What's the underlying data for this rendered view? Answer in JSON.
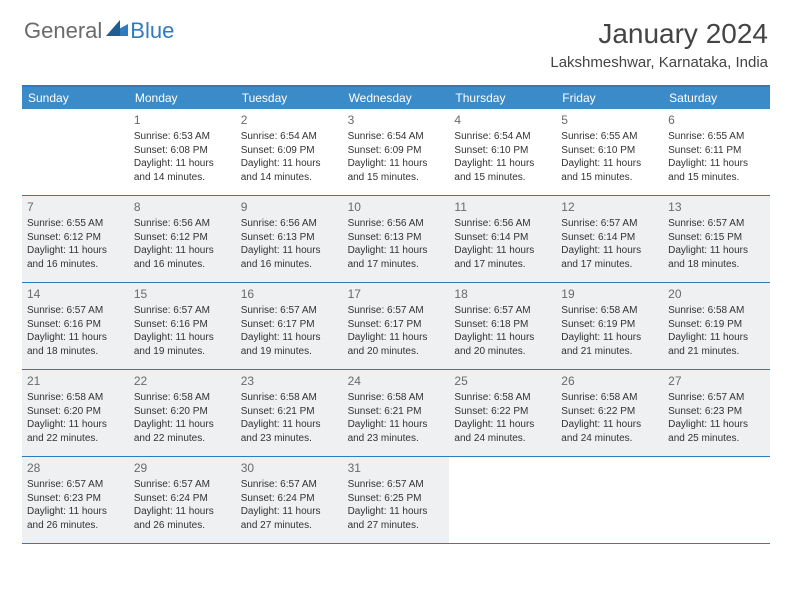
{
  "brand": {
    "part1": "General",
    "part2": "Blue"
  },
  "title": "January 2024",
  "location": "Lakshmeshwar, Karnataka, India",
  "colors": {
    "header_bg": "#3b8bc9",
    "accent": "#2f7bbf",
    "shaded": "#eef0f2",
    "text": "#333333",
    "muted": "#6a6a6a"
  },
  "weekdays": [
    "Sunday",
    "Monday",
    "Tuesday",
    "Wednesday",
    "Thursday",
    "Friday",
    "Saturday"
  ],
  "weeks": [
    [
      {
        "num": "",
        "shaded": false
      },
      {
        "num": "1",
        "shaded": false,
        "sunrise": "Sunrise: 6:53 AM",
        "sunset": "Sunset: 6:08 PM",
        "day1": "Daylight: 11 hours",
        "day2": "and 14 minutes."
      },
      {
        "num": "2",
        "shaded": false,
        "sunrise": "Sunrise: 6:54 AM",
        "sunset": "Sunset: 6:09 PM",
        "day1": "Daylight: 11 hours",
        "day2": "and 14 minutes."
      },
      {
        "num": "3",
        "shaded": false,
        "sunrise": "Sunrise: 6:54 AM",
        "sunset": "Sunset: 6:09 PM",
        "day1": "Daylight: 11 hours",
        "day2": "and 15 minutes."
      },
      {
        "num": "4",
        "shaded": false,
        "sunrise": "Sunrise: 6:54 AM",
        "sunset": "Sunset: 6:10 PM",
        "day1": "Daylight: 11 hours",
        "day2": "and 15 minutes."
      },
      {
        "num": "5",
        "shaded": false,
        "sunrise": "Sunrise: 6:55 AM",
        "sunset": "Sunset: 6:10 PM",
        "day1": "Daylight: 11 hours",
        "day2": "and 15 minutes."
      },
      {
        "num": "6",
        "shaded": false,
        "sunrise": "Sunrise: 6:55 AM",
        "sunset": "Sunset: 6:11 PM",
        "day1": "Daylight: 11 hours",
        "day2": "and 15 minutes."
      }
    ],
    [
      {
        "num": "7",
        "shaded": true,
        "sunrise": "Sunrise: 6:55 AM",
        "sunset": "Sunset: 6:12 PM",
        "day1": "Daylight: 11 hours",
        "day2": "and 16 minutes."
      },
      {
        "num": "8",
        "shaded": true,
        "sunrise": "Sunrise: 6:56 AM",
        "sunset": "Sunset: 6:12 PM",
        "day1": "Daylight: 11 hours",
        "day2": "and 16 minutes."
      },
      {
        "num": "9",
        "shaded": true,
        "sunrise": "Sunrise: 6:56 AM",
        "sunset": "Sunset: 6:13 PM",
        "day1": "Daylight: 11 hours",
        "day2": "and 16 minutes."
      },
      {
        "num": "10",
        "shaded": true,
        "sunrise": "Sunrise: 6:56 AM",
        "sunset": "Sunset: 6:13 PM",
        "day1": "Daylight: 11 hours",
        "day2": "and 17 minutes."
      },
      {
        "num": "11",
        "shaded": true,
        "sunrise": "Sunrise: 6:56 AM",
        "sunset": "Sunset: 6:14 PM",
        "day1": "Daylight: 11 hours",
        "day2": "and 17 minutes."
      },
      {
        "num": "12",
        "shaded": true,
        "sunrise": "Sunrise: 6:57 AM",
        "sunset": "Sunset: 6:14 PM",
        "day1": "Daylight: 11 hours",
        "day2": "and 17 minutes."
      },
      {
        "num": "13",
        "shaded": true,
        "sunrise": "Sunrise: 6:57 AM",
        "sunset": "Sunset: 6:15 PM",
        "day1": "Daylight: 11 hours",
        "day2": "and 18 minutes."
      }
    ],
    [
      {
        "num": "14",
        "shaded": true,
        "sunrise": "Sunrise: 6:57 AM",
        "sunset": "Sunset: 6:16 PM",
        "day1": "Daylight: 11 hours",
        "day2": "and 18 minutes."
      },
      {
        "num": "15",
        "shaded": true,
        "sunrise": "Sunrise: 6:57 AM",
        "sunset": "Sunset: 6:16 PM",
        "day1": "Daylight: 11 hours",
        "day2": "and 19 minutes."
      },
      {
        "num": "16",
        "shaded": true,
        "sunrise": "Sunrise: 6:57 AM",
        "sunset": "Sunset: 6:17 PM",
        "day1": "Daylight: 11 hours",
        "day2": "and 19 minutes."
      },
      {
        "num": "17",
        "shaded": true,
        "sunrise": "Sunrise: 6:57 AM",
        "sunset": "Sunset: 6:17 PM",
        "day1": "Daylight: 11 hours",
        "day2": "and 20 minutes."
      },
      {
        "num": "18",
        "shaded": true,
        "sunrise": "Sunrise: 6:57 AM",
        "sunset": "Sunset: 6:18 PM",
        "day1": "Daylight: 11 hours",
        "day2": "and 20 minutes."
      },
      {
        "num": "19",
        "shaded": true,
        "sunrise": "Sunrise: 6:58 AM",
        "sunset": "Sunset: 6:19 PM",
        "day1": "Daylight: 11 hours",
        "day2": "and 21 minutes."
      },
      {
        "num": "20",
        "shaded": true,
        "sunrise": "Sunrise: 6:58 AM",
        "sunset": "Sunset: 6:19 PM",
        "day1": "Daylight: 11 hours",
        "day2": "and 21 minutes."
      }
    ],
    [
      {
        "num": "21",
        "shaded": true,
        "sunrise": "Sunrise: 6:58 AM",
        "sunset": "Sunset: 6:20 PM",
        "day1": "Daylight: 11 hours",
        "day2": "and 22 minutes."
      },
      {
        "num": "22",
        "shaded": true,
        "sunrise": "Sunrise: 6:58 AM",
        "sunset": "Sunset: 6:20 PM",
        "day1": "Daylight: 11 hours",
        "day2": "and 22 minutes."
      },
      {
        "num": "23",
        "shaded": true,
        "sunrise": "Sunrise: 6:58 AM",
        "sunset": "Sunset: 6:21 PM",
        "day1": "Daylight: 11 hours",
        "day2": "and 23 minutes."
      },
      {
        "num": "24",
        "shaded": true,
        "sunrise": "Sunrise: 6:58 AM",
        "sunset": "Sunset: 6:21 PM",
        "day1": "Daylight: 11 hours",
        "day2": "and 23 minutes."
      },
      {
        "num": "25",
        "shaded": true,
        "sunrise": "Sunrise: 6:58 AM",
        "sunset": "Sunset: 6:22 PM",
        "day1": "Daylight: 11 hours",
        "day2": "and 24 minutes."
      },
      {
        "num": "26",
        "shaded": true,
        "sunrise": "Sunrise: 6:58 AM",
        "sunset": "Sunset: 6:22 PM",
        "day1": "Daylight: 11 hours",
        "day2": "and 24 minutes."
      },
      {
        "num": "27",
        "shaded": true,
        "sunrise": "Sunrise: 6:57 AM",
        "sunset": "Sunset: 6:23 PM",
        "day1": "Daylight: 11 hours",
        "day2": "and 25 minutes."
      }
    ],
    [
      {
        "num": "28",
        "shaded": true,
        "sunrise": "Sunrise: 6:57 AM",
        "sunset": "Sunset: 6:23 PM",
        "day1": "Daylight: 11 hours",
        "day2": "and 26 minutes."
      },
      {
        "num": "29",
        "shaded": true,
        "sunrise": "Sunrise: 6:57 AM",
        "sunset": "Sunset: 6:24 PM",
        "day1": "Daylight: 11 hours",
        "day2": "and 26 minutes."
      },
      {
        "num": "30",
        "shaded": true,
        "sunrise": "Sunrise: 6:57 AM",
        "sunset": "Sunset: 6:24 PM",
        "day1": "Daylight: 11 hours",
        "day2": "and 27 minutes."
      },
      {
        "num": "31",
        "shaded": true,
        "sunrise": "Sunrise: 6:57 AM",
        "sunset": "Sunset: 6:25 PM",
        "day1": "Daylight: 11 hours",
        "day2": "and 27 minutes."
      },
      {
        "num": "",
        "shaded": false
      },
      {
        "num": "",
        "shaded": false
      },
      {
        "num": "",
        "shaded": false
      }
    ]
  ]
}
